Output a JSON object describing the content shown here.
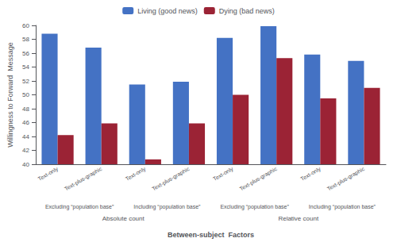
{
  "chart_data": {
    "type": "bar",
    "ylabel": "Willingness to Forward  Message",
    "xlabel": "Between-subject  Factors",
    "categories": [
      "Text-only",
      "Text-plus-graphic",
      "Text-only",
      "Text-plus-graphic",
      "Text-only",
      "Text-plus-graphic",
      "Text-only",
      "Text-plus-graphic"
    ],
    "subgroup_labels": [
      "Excluding “population base”",
      "Including “population base”",
      "Excluding “population base”",
      "Including “population base”"
    ],
    "parent_labels": [
      "Absolute count",
      "Relative count"
    ],
    "series": [
      {
        "name": "Living (good news)",
        "color": "#4472C4",
        "values": [
          58.8,
          56.8,
          51.5,
          51.9,
          58.2,
          59.9,
          55.8,
          54.9
        ]
      },
      {
        "name": "Dying (bad news)",
        "color": "#9B2335",
        "values": [
          44.2,
          45.9,
          40.7,
          45.9,
          50.0,
          55.3,
          49.5,
          51.0
        ]
      }
    ],
    "ylim": [
      40,
      60
    ],
    "yticks": [
      40,
      42,
      44,
      46,
      48,
      50,
      52,
      54,
      56,
      58,
      60
    ],
    "grid": false,
    "legend": "top"
  }
}
